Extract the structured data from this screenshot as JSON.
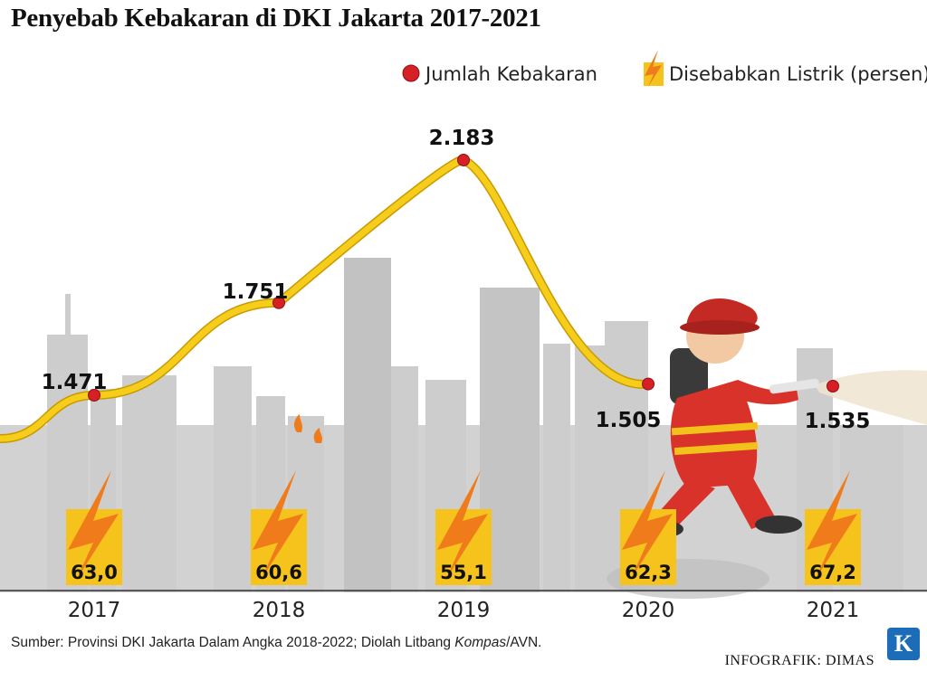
{
  "title": "Penyebab Kebakaran di DKI Jakarta 2017-2021",
  "source": {
    "prefix": "Sumber: Provinsi DKI Jakarta Dalam Angka 2018-2022; Diolah Litbang ",
    "italic": "Kompas",
    "suffix": "/AVN."
  },
  "credit": "INFOGRAFIK: DIMAS",
  "logo_letter": "K",
  "colors": {
    "line": "#f5cd1a",
    "line_edge": "#c99a00",
    "marker": "#d71f26",
    "bolt_box": "#f6c21c",
    "bolt": "#ef7b1a",
    "skyline": "#c9c9c9",
    "firefighter": "#d9322a"
  },
  "chart_data": {
    "type": "line",
    "title": "Penyebab Kebakaran di DKI Jakarta 2017-2021",
    "categories": [
      "2017",
      "2018",
      "2019",
      "2020",
      "2021"
    ],
    "series": [
      {
        "name": "Jumlah Kebakaran",
        "values": [
          1471,
          1751,
          2183,
          1505,
          1535
        ],
        "labels": [
          "1.471",
          "1.751",
          "2.183",
          "1.505",
          "1.535"
        ],
        "icon": "red-dot"
      },
      {
        "name": "Disebabkan Listrik (persen)",
        "values": [
          63.0,
          60.6,
          55.1,
          62.3,
          67.2
        ],
        "labels": [
          "63,0",
          "60,6",
          "55,1",
          "62,3",
          "67,2"
        ],
        "icon": "lightning-bolt"
      }
    ],
    "legend_position": "top-right",
    "grid": false
  }
}
